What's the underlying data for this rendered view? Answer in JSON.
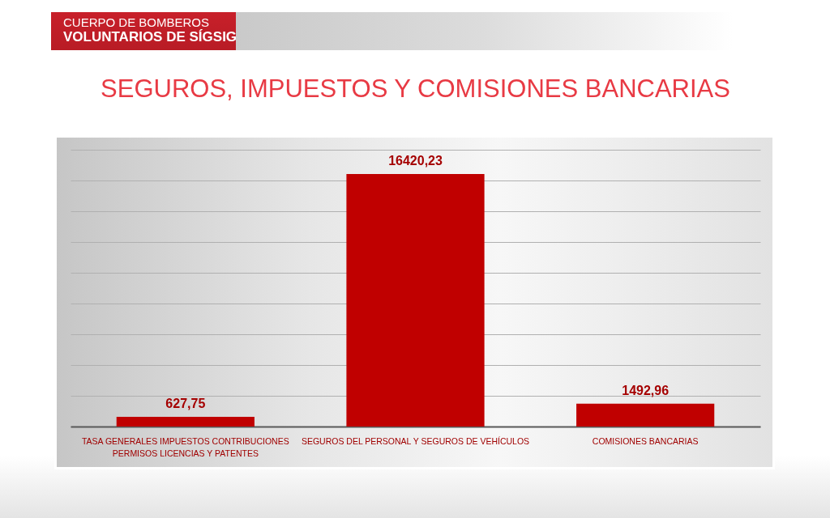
{
  "chart_data": {
    "type": "bar",
    "title": "SEGUROS, IMPUESTOS Y COMISIONES BANCARIAS",
    "annotations": [
      "CUERPO DE BOMBEROS",
      "VOLUNTARIOS DE SÍGSIG"
    ],
    "categories": [
      "TASA GENERALES IMPUESTOS CONTRIBUCIONES PERMISOS LICENCIAS Y PATENTES",
      "SEGUROS DEL PERSONAL Y SEGUROS DE VEHÍCULOS",
      "COMISIONES BANCARIAS"
    ],
    "values": [
      627.75,
      16420.23,
      1492.96
    ],
    "value_labels": [
      "627,75",
      "16420,23",
      "1492,96"
    ],
    "color": "#c00000",
    "ylim": [
      0,
      18000
    ],
    "yticks": [
      {
        "value": 0,
        "label": null
      },
      {
        "value": 2000,
        "label": null
      },
      {
        "value": 4000,
        "label": null
      },
      {
        "value": 6000,
        "label": null
      },
      {
        "value": 8000,
        "label": null
      },
      {
        "value": 10000,
        "label": null
      },
      {
        "value": 12000,
        "label": null
      },
      {
        "value": 14000,
        "label": null
      },
      {
        "value": 16000,
        "label": null
      },
      {
        "value": 18000,
        "label": null
      }
    ],
    "grid": "y",
    "tick_labels": "x"
  }
}
